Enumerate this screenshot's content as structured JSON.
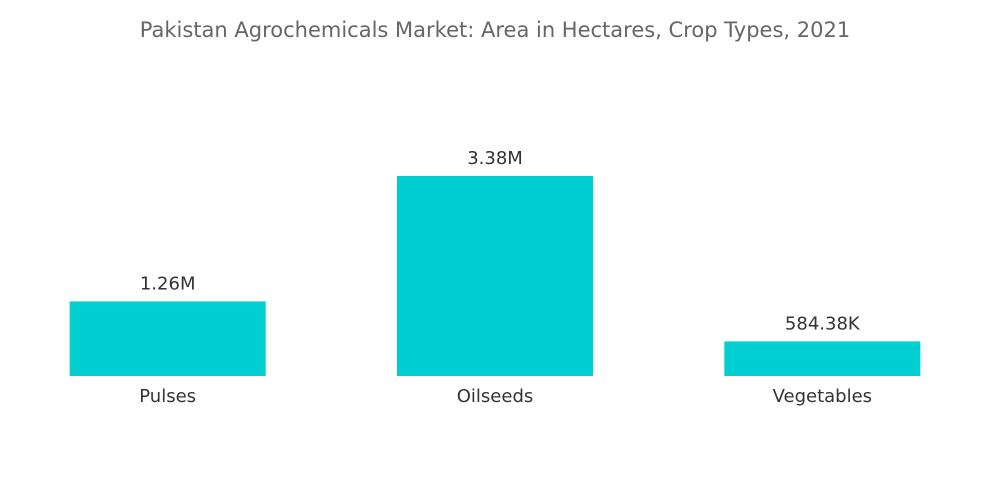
{
  "chart_data": {
    "type": "bar",
    "title": "Pakistan Agrochemicals Market: Area in Hectares, Crop Types, 2021",
    "categories": [
      "Pulses",
      "Oilseeds",
      "Vegetables"
    ],
    "values": [
      1260000,
      3380000,
      584380
    ],
    "value_labels": [
      "1.26M",
      "3.38M",
      "584.38K"
    ],
    "color": "#00ced1"
  }
}
